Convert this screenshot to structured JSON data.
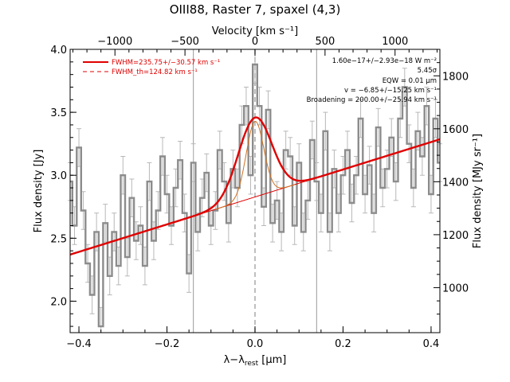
{
  "chart_data": {
    "type": "line",
    "title": "OIII88, Raster 7, spaxel (4,3)",
    "xlabel": "λ−λ",
    "xlabel_sub": "rest",
    "xlabel_unit": " [μm]",
    "ylabel": "Flux density [Jy]",
    "ylabel_right": "Flux density [MJy sr⁻¹]",
    "top_axis_label": "Velocity [km s⁻¹]",
    "xlim": [
      -0.42,
      0.42
    ],
    "ylim": [
      1.75,
      4.0
    ],
    "right_ylim": [
      830,
      1900
    ],
    "top_xlim": [
      -1320,
      1320
    ],
    "x_ticks": [
      -0.4,
      -0.2,
      0.0,
      0.2,
      0.4
    ],
    "x_tick_labels": [
      "−0.4",
      "−0.2",
      "0.0",
      "0.2",
      "0.4"
    ],
    "y_ticks": [
      2.0,
      2.5,
      3.0,
      3.5,
      4.0
    ],
    "y_tick_labels": [
      "2.0",
      "2.5",
      "3.0",
      "3.5",
      "4.0"
    ],
    "right_ticks": [
      1000,
      1200,
      1400,
      1600,
      1800
    ],
    "right_tick_labels": [
      "1000",
      "1200",
      "1400",
      "1600",
      "1800"
    ],
    "top_ticks": [
      -1000,
      -500,
      0,
      500,
      1000
    ],
    "top_tick_labels": [
      "−1000",
      "−500",
      "0",
      "500",
      "1000"
    ],
    "vlines_x": [
      -0.14,
      0.0,
      0.14
    ],
    "spectrum": {
      "name": "spectrum",
      "x": [
        -0.42,
        -0.41,
        -0.4,
        -0.39,
        -0.38,
        -0.37,
        -0.36,
        -0.35,
        -0.34,
        -0.33,
        -0.32,
        -0.31,
        -0.3,
        -0.29,
        -0.28,
        -0.27,
        -0.26,
        -0.25,
        -0.24,
        -0.23,
        -0.22,
        -0.21,
        -0.2,
        -0.19,
        -0.18,
        -0.17,
        -0.16,
        -0.15,
        -0.14,
        -0.13,
        -0.12,
        -0.11,
        -0.1,
        -0.09,
        -0.08,
        -0.07,
        -0.06,
        -0.05,
        -0.04,
        -0.03,
        -0.02,
        -0.01,
        0.0,
        0.01,
        0.02,
        0.03,
        0.04,
        0.05,
        0.06,
        0.07,
        0.08,
        0.09,
        0.1,
        0.11,
        0.12,
        0.13,
        0.14,
        0.15,
        0.16,
        0.17,
        0.18,
        0.19,
        0.2,
        0.21,
        0.22,
        0.23,
        0.24,
        0.25,
        0.26,
        0.27,
        0.28,
        0.29,
        0.3,
        0.31,
        0.32,
        0.33,
        0.34,
        0.35,
        0.36,
        0.37,
        0.38,
        0.39,
        0.4,
        0.41,
        0.42
      ],
      "y": [
        2.95,
        2.6,
        3.22,
        2.72,
        2.3,
        2.05,
        2.55,
        1.8,
        2.62,
        2.2,
        2.55,
        2.28,
        3.0,
        2.35,
        2.82,
        2.48,
        2.6,
        2.28,
        2.95,
        2.48,
        2.72,
        3.15,
        2.85,
        2.6,
        2.9,
        3.12,
        2.7,
        2.22,
        3.1,
        2.55,
        2.82,
        3.02,
        2.6,
        2.72,
        3.2,
        2.95,
        2.62,
        3.05,
        2.9,
        3.4,
        3.55,
        3.0,
        3.88,
        3.55,
        2.75,
        3.52,
        2.62,
        2.8,
        2.55,
        3.2,
        3.15,
        2.6,
        3.1,
        2.55,
        2.8,
        3.28,
        2.95,
        2.7,
        3.35,
        2.55,
        3.05,
        2.7,
        3.0,
        3.2,
        2.78,
        3.0,
        3.45,
        2.85,
        3.08,
        2.7,
        3.38,
        2.9,
        3.05,
        3.3,
        2.95,
        3.45,
        3.7,
        3.25,
        2.9,
        3.35,
        3.15,
        3.55,
        2.85,
        3.45,
        3.1
      ],
      "err": 0.15
    },
    "fit_line": {
      "name": "FWHM=235.75+/−30.57 km s⁻¹",
      "continuum_at_x_min": 2.37,
      "continuum_slope": 1.09,
      "gaussian_amplitude": 0.63,
      "gaussian_sigma": 0.038
    },
    "thin_fit": {
      "name": "FWHM_th=124.82 km s⁻¹",
      "gaussian_amplitude": 0.6,
      "gaussian_sigma": 0.02
    },
    "legend": [
      {
        "label": "FWHM=235.75+/−30.57 km s⁻¹",
        "style": "solid",
        "color": "#e00000"
      },
      {
        "label": "FWHM_th=124.82 km s⁻¹",
        "style": "dashed",
        "color": "#e00000"
      }
    ],
    "legend_position": "top-left",
    "annotations": [
      "1.60e−17+/−2.93e−18 W m⁻²",
      "5.45σ",
      "EQW = 0.01 μm",
      "v = −6.85+/−15.25 km s⁻¹",
      "Broadening = 200.00+/−25.94 km s⁻¹"
    ],
    "colors": {
      "spectrum": "#8c8c8c",
      "error_bars": "#b8b8b8",
      "fit": "#e00000",
      "thin_fit": "#d07020",
      "vlines": "#9a9a9a",
      "zero_line": "#aaaaaa"
    }
  }
}
